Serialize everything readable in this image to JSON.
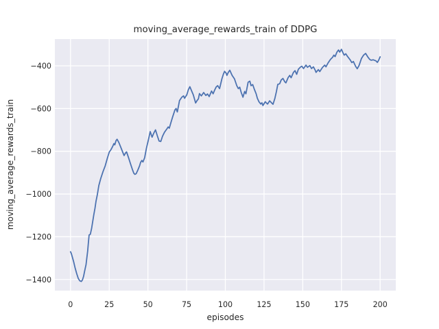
{
  "chart_data": {
    "type": "line",
    "title": "moving_average_rewards_train of DDPG",
    "xlabel": "episodes",
    "ylabel": "moving_average_rewards_train",
    "xlim": [
      -10.1,
      210.1
    ],
    "ylim": [
      -1452,
      -275
    ],
    "x_ticks": [
      0,
      25,
      50,
      75,
      100,
      125,
      150,
      175,
      200
    ],
    "x_tick_labels": [
      "0",
      "25",
      "50",
      "75",
      "100",
      "125",
      "150",
      "175",
      "200"
    ],
    "y_ticks": [
      -400,
      -600,
      -800,
      -1000,
      -1200,
      -1400
    ],
    "y_tick_labels": [
      "−400",
      "−600",
      "−800",
      "−1000",
      "−1200",
      "−1400"
    ],
    "grid": true,
    "legend_position": "none",
    "colors": {
      "line": "#4c72b0",
      "plot_bg": "#eaeaf2",
      "grid": "#ffffff",
      "text": "#262626",
      "figure_bg": "#ffffff"
    },
    "series": [
      {
        "name": "moving_average_rewards_train",
        "points": [
          [
            0,
            -1270
          ],
          [
            0.5,
            -1278
          ],
          [
            1,
            -1291
          ],
          [
            2,
            -1316
          ],
          [
            3,
            -1347
          ],
          [
            4,
            -1372
          ],
          [
            5,
            -1395
          ],
          [
            6,
            -1406
          ],
          [
            7,
            -1409
          ],
          [
            7.7,
            -1402
          ],
          [
            8.4,
            -1386
          ],
          [
            9,
            -1365
          ],
          [
            9.6,
            -1344
          ],
          [
            10,
            -1331
          ],
          [
            10.6,
            -1296
          ],
          [
            11.1,
            -1267
          ],
          [
            11.5,
            -1230
          ],
          [
            12,
            -1192
          ],
          [
            12.8,
            -1188
          ],
          [
            13.6,
            -1162
          ],
          [
            14.3,
            -1130
          ],
          [
            15,
            -1098
          ],
          [
            15.8,
            -1066
          ],
          [
            16.5,
            -1033
          ],
          [
            17.3,
            -1005
          ],
          [
            18.3,
            -960
          ],
          [
            19.5,
            -928
          ],
          [
            21,
            -895
          ],
          [
            22.4,
            -868
          ],
          [
            23.9,
            -830
          ],
          [
            25.1,
            -803
          ],
          [
            26.1,
            -793
          ],
          [
            26.9,
            -782
          ],
          [
            27.6,
            -771
          ],
          [
            28,
            -764
          ],
          [
            28.6,
            -770
          ],
          [
            29.4,
            -750
          ],
          [
            30.1,
            -744
          ],
          [
            31.3,
            -760
          ],
          [
            32.8,
            -787
          ],
          [
            34,
            -809
          ],
          [
            34.6,
            -820
          ],
          [
            35.7,
            -806
          ],
          [
            36.2,
            -803
          ],
          [
            37.5,
            -830
          ],
          [
            38.7,
            -857
          ],
          [
            39.9,
            -884
          ],
          [
            40.9,
            -903
          ],
          [
            41.6,
            -908
          ],
          [
            42.4,
            -905
          ],
          [
            43.4,
            -889
          ],
          [
            44.6,
            -868
          ],
          [
            45.3,
            -852
          ],
          [
            46.1,
            -843
          ],
          [
            46.8,
            -850
          ],
          [
            47.9,
            -830
          ],
          [
            49,
            -787
          ],
          [
            50.2,
            -750
          ],
          [
            51.5,
            -708
          ],
          [
            52.7,
            -734
          ],
          [
            53.8,
            -715
          ],
          [
            54.9,
            -700
          ],
          [
            56,
            -726
          ],
          [
            57.2,
            -752
          ],
          [
            58.3,
            -754
          ],
          [
            59.4,
            -730
          ],
          [
            60.6,
            -712
          ],
          [
            61.6,
            -702
          ],
          [
            62.4,
            -694
          ],
          [
            63.1,
            -686
          ],
          [
            63.8,
            -692
          ],
          [
            65,
            -662
          ],
          [
            66,
            -638
          ],
          [
            67.5,
            -606
          ],
          [
            68.2,
            -600
          ],
          [
            69,
            -616
          ],
          [
            70.4,
            -563
          ],
          [
            71.9,
            -547
          ],
          [
            73,
            -541
          ],
          [
            73.7,
            -552
          ],
          [
            75.1,
            -536
          ],
          [
            76.1,
            -512
          ],
          [
            77.1,
            -498
          ],
          [
            78.2,
            -517
          ],
          [
            79.3,
            -536
          ],
          [
            80.8,
            -574
          ],
          [
            81.8,
            -562
          ],
          [
            82.6,
            -555
          ],
          [
            83.3,
            -530
          ],
          [
            84.5,
            -541
          ],
          [
            86,
            -525
          ],
          [
            87.4,
            -539
          ],
          [
            88.5,
            -532
          ],
          [
            89.6,
            -544
          ],
          [
            91.1,
            -518
          ],
          [
            92.1,
            -531
          ],
          [
            93.1,
            -514
          ],
          [
            94.1,
            -499
          ],
          [
            95.1,
            -493
          ],
          [
            96.3,
            -507
          ],
          [
            97.8,
            -461
          ],
          [
            98.7,
            -440
          ],
          [
            99.5,
            -426
          ],
          [
            100.5,
            -434
          ],
          [
            101,
            -445
          ],
          [
            102,
            -430
          ],
          [
            102.9,
            -421
          ],
          [
            104.4,
            -445
          ],
          [
            105.9,
            -461
          ],
          [
            107.4,
            -493
          ],
          [
            108.4,
            -507
          ],
          [
            109.3,
            -500
          ],
          [
            110.3,
            -525
          ],
          [
            111.4,
            -547
          ],
          [
            112.5,
            -520
          ],
          [
            113.3,
            -531
          ],
          [
            114.7,
            -477
          ],
          [
            115.8,
            -472
          ],
          [
            116.6,
            -493
          ],
          [
            117.7,
            -488
          ],
          [
            118.7,
            -509
          ],
          [
            119.9,
            -531
          ],
          [
            120.7,
            -552
          ],
          [
            121.7,
            -568
          ],
          [
            122.9,
            -579
          ],
          [
            123.6,
            -573
          ],
          [
            124.3,
            -586
          ],
          [
            125.8,
            -568
          ],
          [
            126.5,
            -574
          ],
          [
            127.3,
            -579
          ],
          [
            128.6,
            -564
          ],
          [
            129.7,
            -572
          ],
          [
            130.8,
            -580
          ],
          [
            132,
            -553
          ],
          [
            133,
            -520
          ],
          [
            133.9,
            -487
          ],
          [
            135.1,
            -484
          ],
          [
            136.1,
            -466
          ],
          [
            137.2,
            -459
          ],
          [
            138.4,
            -475
          ],
          [
            139.1,
            -480
          ],
          [
            140.6,
            -455
          ],
          [
            141.6,
            -445
          ],
          [
            142.5,
            -456
          ],
          [
            144,
            -431
          ],
          [
            145,
            -423
          ],
          [
            146.1,
            -440
          ],
          [
            147.2,
            -416
          ],
          [
            148.7,
            -405
          ],
          [
            149.4,
            -402
          ],
          [
            150.5,
            -413
          ],
          [
            152.1,
            -397
          ],
          [
            153.1,
            -407
          ],
          [
            154.6,
            -399
          ],
          [
            155.7,
            -413
          ],
          [
            156.9,
            -405
          ],
          [
            158,
            -420
          ],
          [
            158.6,
            -431
          ],
          [
            160.1,
            -418
          ],
          [
            161,
            -427
          ],
          [
            162.8,
            -407
          ],
          [
            164.2,
            -397
          ],
          [
            165,
            -405
          ],
          [
            166.4,
            -386
          ],
          [
            167.9,
            -370
          ],
          [
            169.3,
            -360
          ],
          [
            170.1,
            -350
          ],
          [
            170.9,
            -357
          ],
          [
            172.1,
            -336
          ],
          [
            173.1,
            -326
          ],
          [
            173.9,
            -336
          ],
          [
            175,
            -323
          ],
          [
            176,
            -339
          ],
          [
            176.8,
            -350
          ],
          [
            177.8,
            -344
          ],
          [
            179,
            -357
          ],
          [
            180.5,
            -371
          ],
          [
            181.7,
            -385
          ],
          [
            182.7,
            -380
          ],
          [
            184.2,
            -403
          ],
          [
            185.2,
            -414
          ],
          [
            186.4,
            -398
          ],
          [
            187.9,
            -366
          ],
          [
            189.3,
            -350
          ],
          [
            190.6,
            -342
          ],
          [
            192,
            -358
          ],
          [
            193.2,
            -370
          ],
          [
            194.2,
            -374
          ],
          [
            195.5,
            -372
          ],
          [
            196.6,
            -375
          ],
          [
            197.3,
            -377
          ],
          [
            198.2,
            -384
          ],
          [
            199,
            -375
          ],
          [
            200,
            -358
          ]
        ]
      }
    ]
  }
}
